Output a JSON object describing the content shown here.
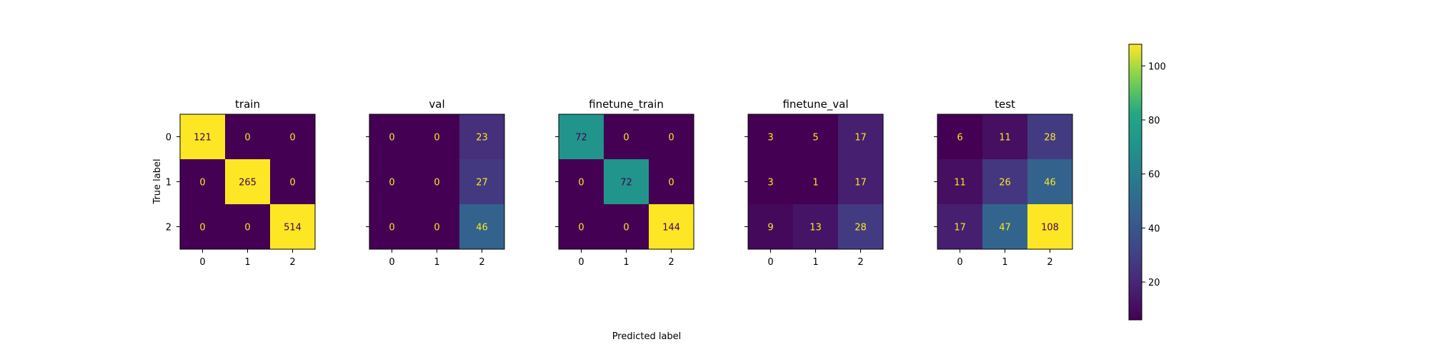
{
  "figure": {
    "xlabel": "Predicted label",
    "ylabel": "True label"
  },
  "chart_data": [
    {
      "type": "heatmap",
      "title": "train",
      "x_ticks": [
        "0",
        "1",
        "2"
      ],
      "y_ticks": [
        "0",
        "1",
        "2"
      ],
      "matrix": [
        [
          121,
          0,
          0
        ],
        [
          0,
          265,
          0
        ],
        [
          0,
          0,
          514
        ]
      ]
    },
    {
      "type": "heatmap",
      "title": "val",
      "x_ticks": [
        "0",
        "1",
        "2"
      ],
      "y_ticks": [
        "0",
        "1",
        "2"
      ],
      "matrix": [
        [
          0,
          0,
          23
        ],
        [
          0,
          0,
          27
        ],
        [
          0,
          0,
          46
        ]
      ]
    },
    {
      "type": "heatmap",
      "title": "finetune_train",
      "x_ticks": [
        "0",
        "1",
        "2"
      ],
      "y_ticks": [
        "0",
        "1",
        "2"
      ],
      "matrix": [
        [
          72,
          0,
          0
        ],
        [
          0,
          72,
          0
        ],
        [
          0,
          0,
          144
        ]
      ]
    },
    {
      "type": "heatmap",
      "title": "finetune_val",
      "x_ticks": [
        "0",
        "1",
        "2"
      ],
      "y_ticks": [
        "0",
        "1",
        "2"
      ],
      "matrix": [
        [
          3,
          5,
          17
        ],
        [
          3,
          1,
          17
        ],
        [
          9,
          13,
          28
        ]
      ]
    },
    {
      "type": "heatmap",
      "title": "test",
      "x_ticks": [
        "0",
        "1",
        "2"
      ],
      "y_ticks": [
        "0",
        "1",
        "2"
      ],
      "matrix": [
        [
          6,
          11,
          28
        ],
        [
          11,
          26,
          46
        ],
        [
          17,
          47,
          108
        ]
      ]
    }
  ],
  "colorbar": {
    "colormap": "viridis",
    "vmin": 6,
    "vmax": 108,
    "ticks": [
      20,
      40,
      60,
      80,
      100
    ]
  },
  "colors": {
    "text_on_dark": "#fde725",
    "text_on_light": "#440154"
  }
}
